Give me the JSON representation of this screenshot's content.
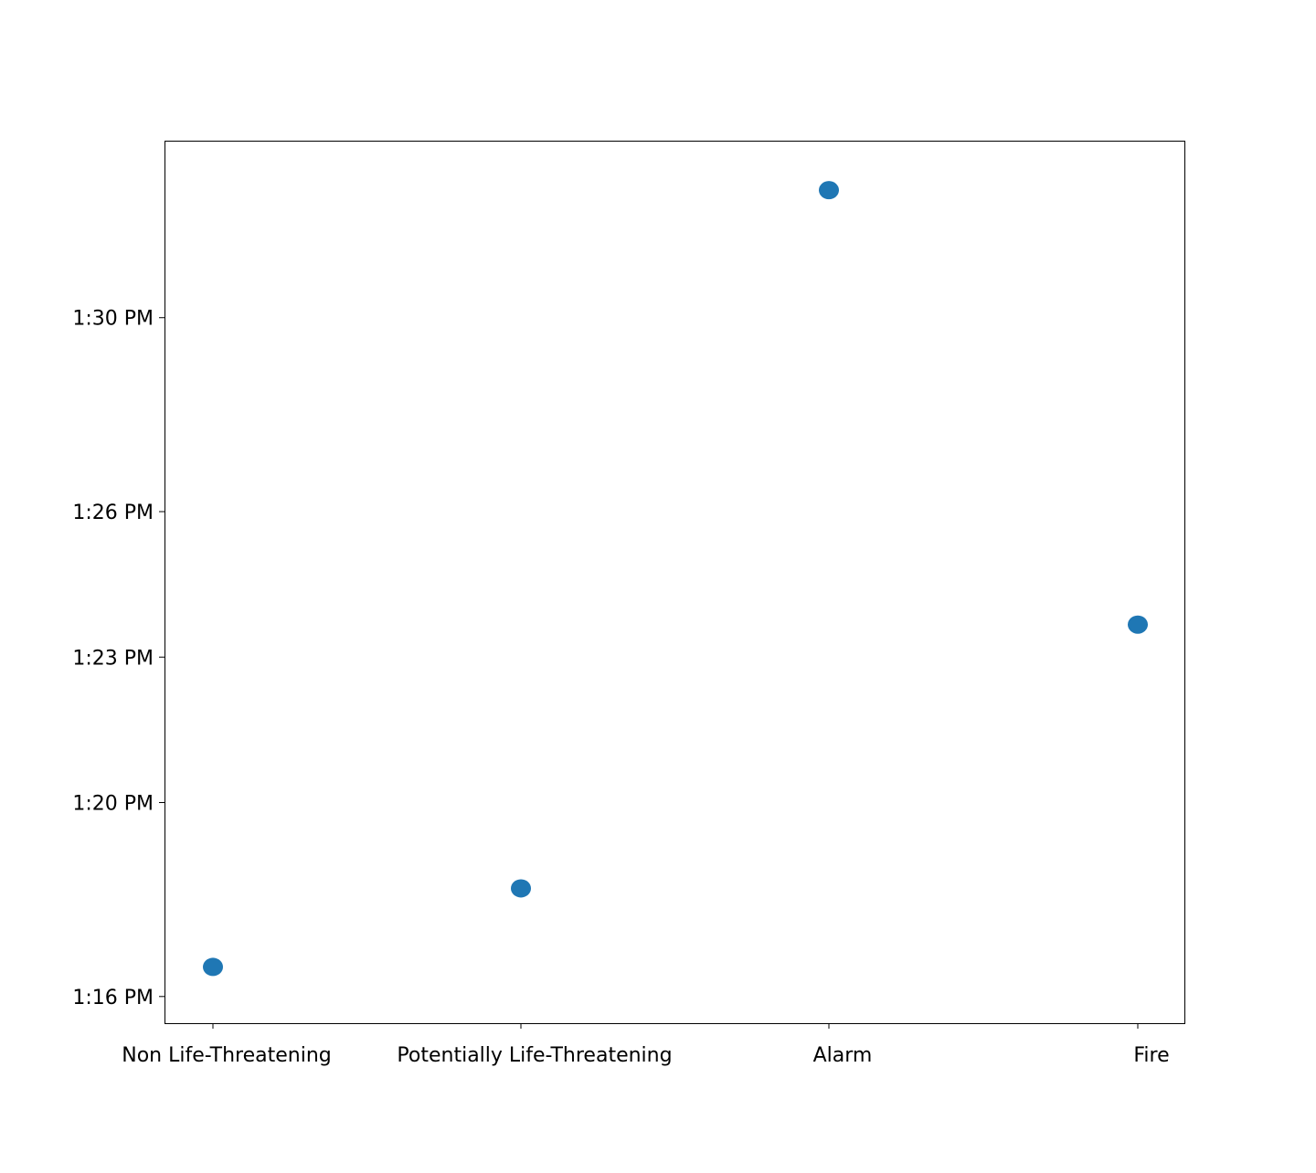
{
  "chart_data": {
    "type": "scatter",
    "title": "",
    "xlabel": "",
    "ylabel": "",
    "categories": [
      "Non Life-Threatening",
      "Potentially Life-Threatening",
      "Alarm",
      "Fire"
    ],
    "y_ticks": [
      {
        "label": "1:16 PM",
        "minutes": 16
      },
      {
        "label": "1:20 PM",
        "minutes": 20
      },
      {
        "label": "1:23 PM",
        "minutes": 23
      },
      {
        "label": "1:26 PM",
        "minutes": 26
      },
      {
        "label": "1:30 PM",
        "minutes": 30
      }
    ],
    "y_range_minutes": [
      15.45,
      33.65
    ],
    "series": [
      {
        "color": "#1f77b4",
        "points": [
          {
            "category": "Non Life-Threatening",
            "time": "1:16:37 PM",
            "minutes": 16.61
          },
          {
            "category": "Potentially Life-Threatening",
            "time": "1:18:14 PM",
            "minutes": 18.23
          },
          {
            "category": "Alarm",
            "time": "1:32:38 PM",
            "minutes": 32.63
          },
          {
            "category": "Fire",
            "time": "1:23:40 PM",
            "minutes": 23.67
          }
        ]
      }
    ],
    "grid": false,
    "legend": "none"
  }
}
